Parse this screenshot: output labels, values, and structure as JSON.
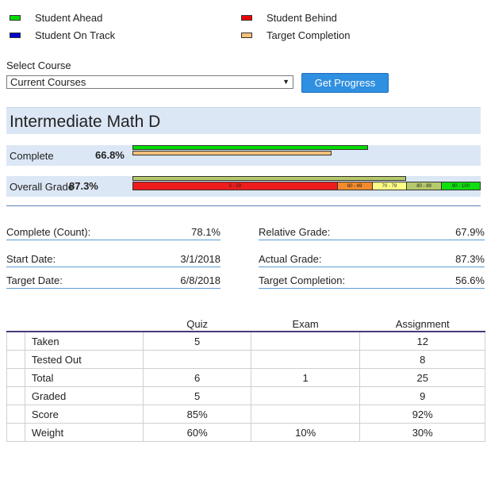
{
  "legend": {
    "items": [
      {
        "label": "Student Ahead",
        "color": "#00dd00"
      },
      {
        "label": "Student On Track",
        "color": "#0000cc"
      },
      {
        "label": "Student Behind",
        "color": "#ee0000"
      },
      {
        "label": "Target Completion",
        "color": "#f6c07a"
      }
    ]
  },
  "course": {
    "label": "Select Course",
    "selected": "Current Courses",
    "button": "Get Progress"
  },
  "course_title": "Intermediate Math D",
  "complete": {
    "label": "Complete",
    "value_text": "66.8%",
    "student_fraction": 0.668,
    "target_fraction": 0.566
  },
  "grade": {
    "label": "Overall Grade",
    "value_text": "87.3%",
    "fraction": 0.873,
    "scale": [
      {
        "label": "0 - 59",
        "color": "#ee1c1c",
        "weight": 59
      },
      {
        "label": "60 - 69",
        "color": "#f28b2c",
        "weight": 10
      },
      {
        "label": "70 - 79",
        "color": "#ffff88",
        "weight": 10
      },
      {
        "label": "80 - 89",
        "color": "#b5c96a",
        "weight": 10
      },
      {
        "label": "90 - 100",
        "color": "#11dd11",
        "weight": 11
      }
    ]
  },
  "details": {
    "complete_count": {
      "label": "Complete (Count):",
      "value": "78.1%"
    },
    "relative_grade": {
      "label": "Relative Grade:",
      "value": "67.9%"
    },
    "start_date": {
      "label": "Start Date:",
      "value": "3/1/2018"
    },
    "actual_grade": {
      "label": "Actual Grade:",
      "value": "87.3%"
    },
    "target_date": {
      "label": "Target Date:",
      "value": "6/8/2018"
    },
    "target_completion": {
      "label": "Target Completion:",
      "value": "56.6%"
    }
  },
  "table": {
    "columns": [
      "Quiz",
      "Exam",
      "Assignment"
    ],
    "rows": [
      {
        "label": "Taken",
        "values": [
          "5",
          "",
          "12"
        ]
      },
      {
        "label": "Tested Out",
        "values": [
          "",
          "",
          "8"
        ]
      },
      {
        "label": "Total",
        "values": [
          "6",
          "1",
          "25"
        ]
      },
      {
        "label": "Graded",
        "values": [
          "5",
          "",
          "9"
        ]
      },
      {
        "label": "Score",
        "values": [
          "85%",
          "",
          "92%"
        ]
      },
      {
        "label": "Weight",
        "values": [
          "60%",
          "10%",
          "30%"
        ]
      }
    ]
  }
}
